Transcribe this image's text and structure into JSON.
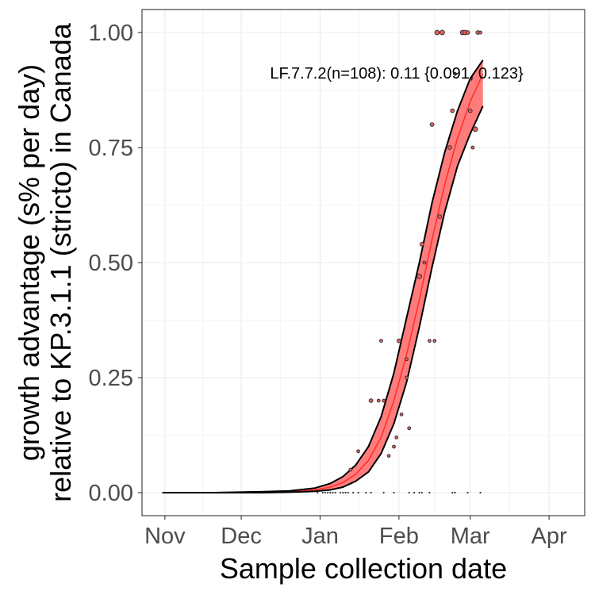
{
  "chart_data": {
    "type": "scatter",
    "title": "",
    "xlabel": "Sample collection date",
    "ylabel_lines": [
      "growth advantage (s% per day)",
      "relative to KP.3.1.1 (stricto) in Canada"
    ],
    "x_axis": {
      "type": "date",
      "range": [
        "2024-10-23",
        "2025-04-15"
      ],
      "ticks": [
        {
          "date": "2024-11-01",
          "label": "Nov"
        },
        {
          "date": "2024-12-01",
          "label": "Dec"
        },
        {
          "date": "2025-01-01",
          "label": "Jan"
        },
        {
          "date": "2025-02-01",
          "label": "Feb"
        },
        {
          "date": "2025-03-01",
          "label": "Mar"
        },
        {
          "date": "2025-04-01",
          "label": "Apr"
        }
      ]
    },
    "y_axis": {
      "range": [
        -0.05,
        1.05
      ],
      "ticks": [
        {
          "value": 0.0,
          "label": "0.00"
        },
        {
          "value": 0.25,
          "label": "0.25"
        },
        {
          "value": 0.5,
          "label": "0.50"
        },
        {
          "value": 0.75,
          "label": "0.75"
        },
        {
          "value": 1.0,
          "label": "1.00"
        }
      ]
    },
    "grid": true,
    "annotation": "LF.7.7.2(n=108): 0.11 {0.091, 0.123}",
    "fit_curve": {
      "x": [
        "2024-10-31",
        "2024-11-10",
        "2024-11-20",
        "2024-11-30",
        "2024-12-10",
        "2024-12-20",
        "2024-12-30",
        "2025-01-05",
        "2025-01-10",
        "2025-01-15",
        "2025-01-20",
        "2025-01-25",
        "2025-01-30",
        "2025-02-04",
        "2025-02-09",
        "2025-02-14",
        "2025-02-19",
        "2025-02-24",
        "2025-03-01",
        "2025-03-06"
      ],
      "y": [
        0.0,
        0.0,
        0.0,
        0.0,
        0.001,
        0.002,
        0.006,
        0.012,
        0.022,
        0.04,
        0.07,
        0.12,
        0.2,
        0.3,
        0.42,
        0.55,
        0.67,
        0.77,
        0.85,
        0.91
      ],
      "lower": [
        0.0,
        0.0,
        0.0,
        0.0,
        0.0,
        0.001,
        0.003,
        0.006,
        0.012,
        0.025,
        0.045,
        0.085,
        0.15,
        0.24,
        0.36,
        0.49,
        0.61,
        0.71,
        0.78,
        0.84
      ],
      "upper": [
        0.0,
        0.0,
        0.0,
        0.001,
        0.002,
        0.004,
        0.01,
        0.02,
        0.035,
        0.06,
        0.1,
        0.165,
        0.26,
        0.38,
        0.5,
        0.63,
        0.74,
        0.83,
        0.9,
        0.94
      ]
    },
    "points": [
      {
        "x": "2024-12-31",
        "y": 0.0,
        "n": 1
      },
      {
        "x": "2025-01-02",
        "y": 0.0,
        "n": 1
      },
      {
        "x": "2025-01-03",
        "y": 0.0,
        "n": 1
      },
      {
        "x": "2025-01-04",
        "y": 0.0,
        "n": 1
      },
      {
        "x": "2025-01-05",
        "y": 0.0,
        "n": 1
      },
      {
        "x": "2025-01-06",
        "y": 0.0,
        "n": 1
      },
      {
        "x": "2025-01-07",
        "y": 0.0,
        "n": 1
      },
      {
        "x": "2025-01-09",
        "y": 0.0,
        "n": 1
      },
      {
        "x": "2025-01-10",
        "y": 0.0,
        "n": 1
      },
      {
        "x": "2025-01-11",
        "y": 0.0,
        "n": 1
      },
      {
        "x": "2025-01-12",
        "y": 0.0,
        "n": 1
      },
      {
        "x": "2025-01-14",
        "y": 0.0,
        "n": 1
      },
      {
        "x": "2025-01-16",
        "y": 0.0,
        "n": 1
      },
      {
        "x": "2025-01-19",
        "y": 0.0,
        "n": 1
      },
      {
        "x": "2025-01-21",
        "y": 0.0,
        "n": 1
      },
      {
        "x": "2025-01-26",
        "y": 0.0,
        "n": 1
      },
      {
        "x": "2025-01-30",
        "y": 0.0,
        "n": 1
      },
      {
        "x": "2025-02-05",
        "y": 0.0,
        "n": 1
      },
      {
        "x": "2025-02-07",
        "y": 0.0,
        "n": 1
      },
      {
        "x": "2025-02-09",
        "y": 0.0,
        "n": 1
      },
      {
        "x": "2025-02-10",
        "y": 0.0,
        "n": 1
      },
      {
        "x": "2025-02-13",
        "y": 0.0,
        "n": 1
      },
      {
        "x": "2025-02-22",
        "y": 0.0,
        "n": 1
      },
      {
        "x": "2025-02-23",
        "y": 0.0,
        "n": 1
      },
      {
        "x": "2025-02-28",
        "y": 0.0,
        "n": 1
      },
      {
        "x": "2025-03-05",
        "y": 0.0,
        "n": 1
      },
      {
        "x": "2025-01-13",
        "y": 0.05,
        "n": 2
      },
      {
        "x": "2025-01-16",
        "y": 0.09,
        "n": 2
      },
      {
        "x": "2025-01-28",
        "y": 0.08,
        "n": 2
      },
      {
        "x": "2025-01-30",
        "y": 0.1,
        "n": 2
      },
      {
        "x": "2025-01-31",
        "y": 0.12,
        "n": 2
      },
      {
        "x": "2025-02-05",
        "y": 0.14,
        "n": 2
      },
      {
        "x": "2025-01-21",
        "y": 0.2,
        "n": 3
      },
      {
        "x": "2025-01-24",
        "y": 0.2,
        "n": 2
      },
      {
        "x": "2025-01-26",
        "y": 0.2,
        "n": 2
      },
      {
        "x": "2025-01-25",
        "y": 0.33,
        "n": 2
      },
      {
        "x": "2025-02-01",
        "y": 0.33,
        "n": 3
      },
      {
        "x": "2025-02-02",
        "y": 0.17,
        "n": 2
      },
      {
        "x": "2025-02-04",
        "y": 0.29,
        "n": 2
      },
      {
        "x": "2025-02-04",
        "y": 0.25,
        "n": 2
      },
      {
        "x": "2025-02-09",
        "y": 0.47,
        "n": 4
      },
      {
        "x": "2025-02-10",
        "y": 0.54,
        "n": 3
      },
      {
        "x": "2025-02-11",
        "y": 0.5,
        "n": 2
      },
      {
        "x": "2025-02-13",
        "y": 0.33,
        "n": 2
      },
      {
        "x": "2025-02-15",
        "y": 0.33,
        "n": 2
      },
      {
        "x": "2025-02-14",
        "y": 0.8,
        "n": 3
      },
      {
        "x": "2025-02-17",
        "y": 0.6,
        "n": 3
      },
      {
        "x": "2025-02-21",
        "y": 0.75,
        "n": 3
      },
      {
        "x": "2025-02-22",
        "y": 0.83,
        "n": 3
      },
      {
        "x": "2025-02-23",
        "y": 0.91,
        "n": 2
      },
      {
        "x": "2025-02-16",
        "y": 1.0,
        "n": 4
      },
      {
        "x": "2025-02-18",
        "y": 1.0,
        "n": 4
      },
      {
        "x": "2025-02-26",
        "y": 1.0,
        "n": 4
      },
      {
        "x": "2025-02-27",
        "y": 1.0,
        "n": 4
      },
      {
        "x": "2025-02-28",
        "y": 1.0,
        "n": 3
      },
      {
        "x": "2025-03-04",
        "y": 1.0,
        "n": 3
      },
      {
        "x": "2025-03-05",
        "y": 1.0,
        "n": 2
      },
      {
        "x": "2025-03-01",
        "y": 0.83,
        "n": 3
      },
      {
        "x": "2025-03-03",
        "y": 0.79,
        "n": 4
      },
      {
        "x": "2025-03-02",
        "y": 0.75,
        "n": 2
      }
    ],
    "colors": {
      "band": "#FF6E6E",
      "line": "#FF3030",
      "ci_edge": "#000000",
      "point_fill": "#E86060",
      "point_edge": "#333333"
    }
  }
}
